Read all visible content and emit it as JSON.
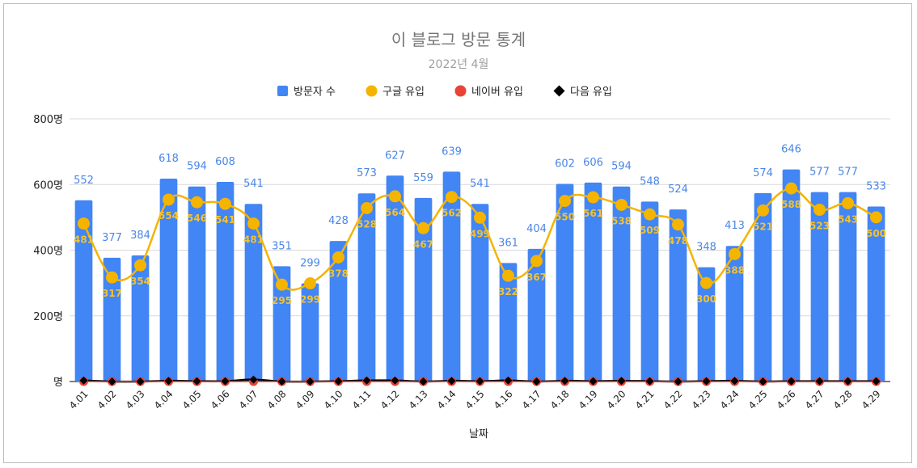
{
  "chart_data": {
    "type": "bar",
    "title": "이 블로그 방문 통계",
    "subtitle": "2022년 4월",
    "xlabel": "날짜",
    "ylabel": "",
    "ylim": [
      0,
      800
    ],
    "yticks": [
      0,
      200,
      400,
      600,
      800
    ],
    "ytick_suffix": "명",
    "legend_position": "top",
    "grid": true,
    "categories": [
      "4.01",
      "4.02",
      "4.03",
      "4.04",
      "4.05",
      "4.06",
      "4.07",
      "4.08",
      "4.09",
      "4.10",
      "4.11",
      "4.12",
      "4.13",
      "4.14",
      "4.15",
      "4.16",
      "4.17",
      "4.18",
      "4.19",
      "4.20",
      "4.21",
      "4.22",
      "4.23",
      "4.24",
      "4.25",
      "4.26",
      "4.27",
      "4.28",
      "4.29"
    ],
    "series": [
      {
        "name": "방문자 수",
        "kind": "bar",
        "color": "#4285f4",
        "values": [
          552,
          377,
          384,
          618,
          594,
          608,
          541,
          351,
          299,
          428,
          573,
          627,
          559,
          639,
          541,
          361,
          404,
          602,
          606,
          594,
          548,
          524,
          348,
          413,
          574,
          646,
          577,
          577,
          533
        ]
      },
      {
        "name": "구글 유입",
        "kind": "line",
        "color": "#f4b400",
        "values": [
          481,
          317,
          354,
          554,
          546,
          541,
          481,
          295,
          299,
          378,
          528,
          564,
          467,
          562,
          499,
          322,
          367,
          550,
          561,
          538,
          509,
          478,
          300,
          388,
          521,
          588,
          523,
          543,
          500
        ]
      },
      {
        "name": "네이버 유입",
        "kind": "line",
        "color": "#ea4335",
        "values": [
          0,
          0,
          0,
          0,
          0,
          0,
          0,
          0,
          0,
          0,
          0,
          0,
          0,
          0,
          0,
          0,
          0,
          0,
          0,
          0,
          0,
          0,
          0,
          0,
          0,
          0,
          0,
          0,
          0
        ]
      },
      {
        "name": "다음 유입",
        "kind": "line",
        "color": "#000000",
        "values": [
          3,
          0,
          0,
          2,
          1,
          1,
          6,
          0,
          0,
          1,
          3,
          3,
          0,
          2,
          1,
          3,
          0,
          2,
          1,
          2,
          1,
          0,
          1,
          2,
          0,
          1,
          1,
          1,
          1
        ]
      }
    ]
  }
}
